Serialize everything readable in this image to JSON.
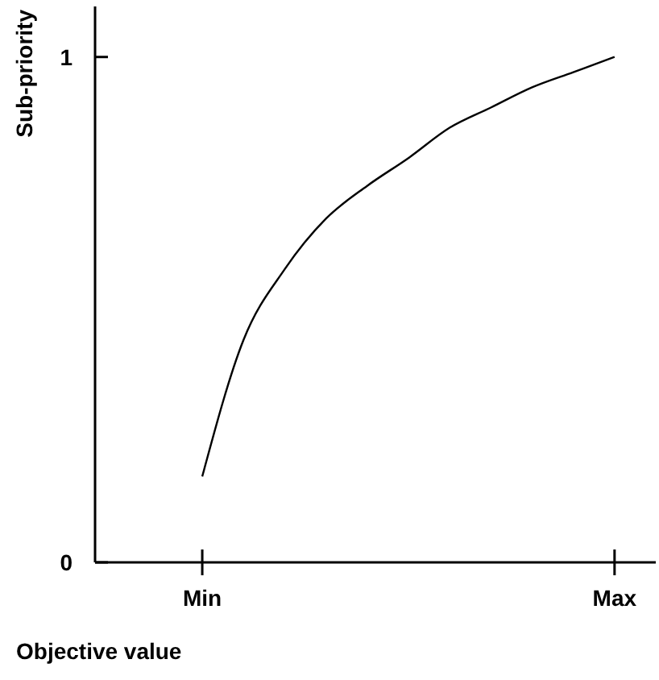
{
  "chart_data": {
    "type": "line",
    "xlabel": "Objective value",
    "ylabel": "Sub-priority",
    "categories": [
      "Min",
      null,
      null,
      null,
      null,
      null,
      null,
      null,
      null,
      null,
      "Max"
    ],
    "series": [
      {
        "color": "#000000",
        "values": [
          0.17,
          0.44,
          0.58,
          0.68,
          0.745,
          0.8,
          0.86,
          0.9,
          0.94,
          0.97,
          1
        ]
      }
    ],
    "ylim": [
      0,
      1.1
    ],
    "yticks": [
      0,
      1
    ],
    "marker": "none",
    "line_style": "solid"
  }
}
